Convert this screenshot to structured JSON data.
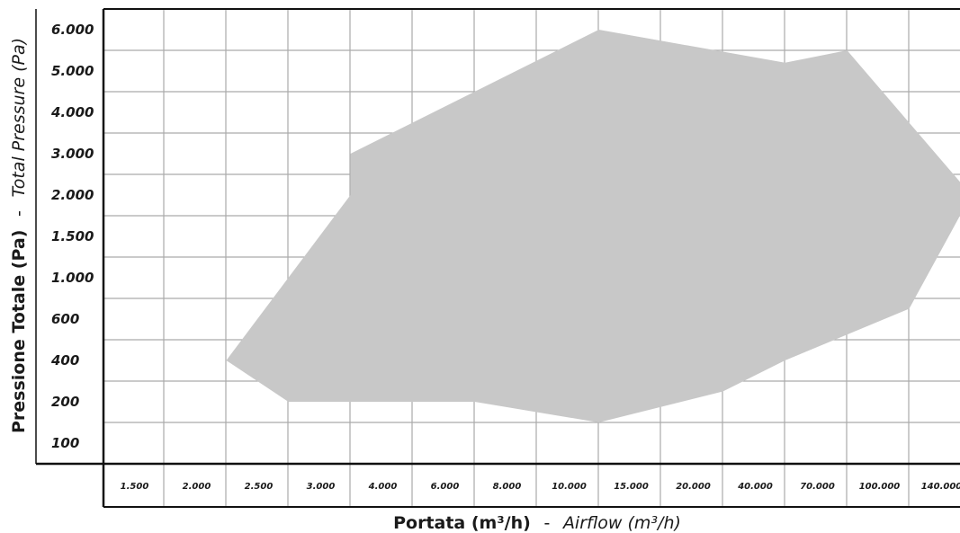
{
  "chart_data": {
    "type": "area",
    "xlabel": "Portata (m³/h)",
    "xlabel_italic": "Airflow (m³/h)",
    "ylabel": "Pressione Totale (Pa)",
    "ylabel_italic": "Total Pressure (Pa)",
    "separator": "-",
    "x_ticks": [
      "1.500",
      "2.000",
      "2.500",
      "3.000",
      "4.000",
      "6.000",
      "8.000",
      "10.000",
      "15.000",
      "20.000",
      "40.000",
      "70.000",
      "100.000",
      "140.000"
    ],
    "y_ticks": [
      "100",
      "200",
      "400",
      "600",
      "1.000",
      "1.500",
      "2.000",
      "3.000",
      "4.000",
      "5.000",
      "6.000"
    ],
    "grid": true,
    "series": [
      {
        "fill": "#c8c8c8",
        "points": [
          {
            "x": "2.000",
            "y": "400"
          },
          {
            "x": "2.500",
            "y": "200"
          },
          {
            "x": "6.000",
            "y": "200"
          },
          {
            "x": "10.000",
            "y": "150"
          },
          {
            "x": "20.000",
            "y": "250"
          },
          {
            "x": "40.000",
            "y": "400"
          },
          {
            "x": "100.000",
            "y": "700"
          },
          {
            "x": "140.000",
            "y": "2.000"
          },
          {
            "x": "70.000",
            "y": "5.500"
          },
          {
            "x": "40.000",
            "y": "5.200"
          },
          {
            "x": "10.000",
            "y": "6.000"
          },
          {
            "x": "6.000",
            "y": "4.500"
          },
          {
            "x": "3.000",
            "y": "3.000"
          },
          {
            "x": "3.000",
            "y": "2.000"
          }
        ]
      }
    ]
  }
}
